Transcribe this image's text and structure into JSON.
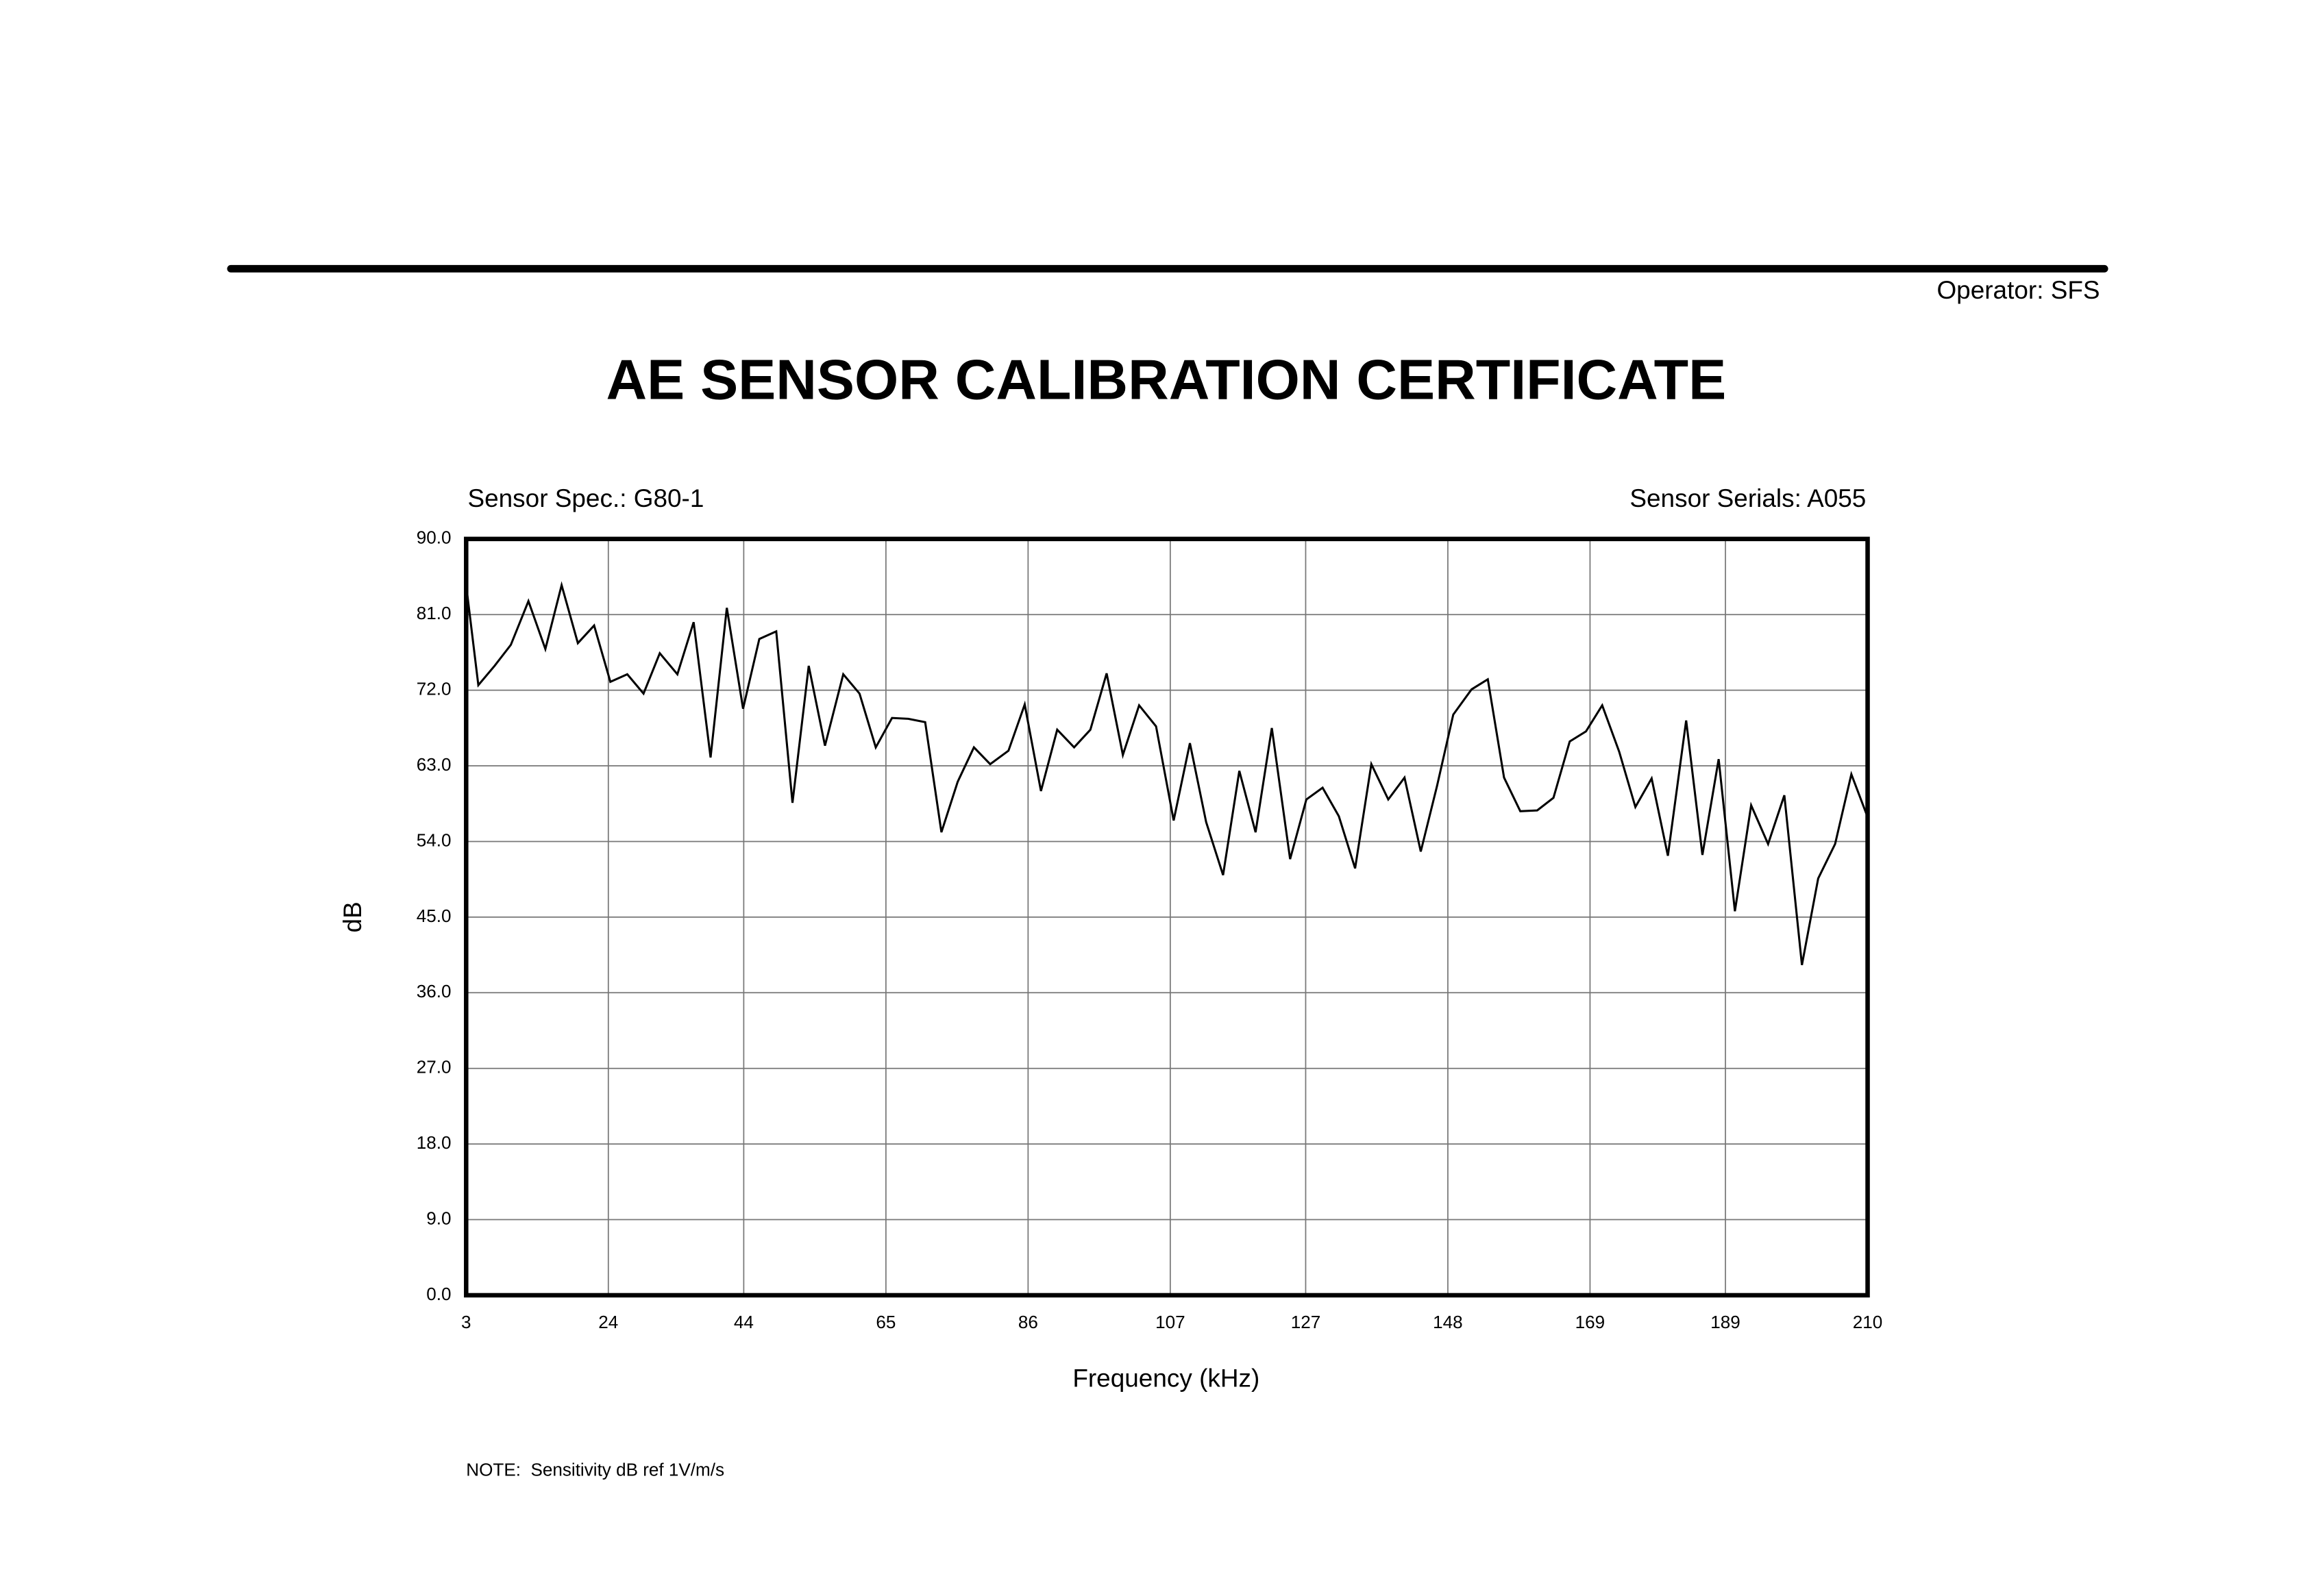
{
  "chart_data": {
    "type": "line",
    "title": "AE SENSOR CALIBRATION CERTIFICATE",
    "operator": "Operator: SFS",
    "sensor_spec": "Sensor Spec.: G80-1",
    "sensor_serials": "Sensor Serials: A055",
    "note": "NOTE:  Sensitivity dB ref 1V/m/s",
    "xlabel": "Frequency (kHz)",
    "ylabel": "dB",
    "xlim": [
      3,
      210
    ],
    "xticks": [
      3,
      24,
      44,
      65,
      86,
      107,
      127,
      148,
      169,
      189,
      210
    ],
    "ylim": [
      0,
      90
    ],
    "yticks": [
      {
        "value": 0,
        "label": "0.0"
      },
      {
        "value": 9,
        "label": "9.0"
      },
      {
        "value": 18,
        "label": "18.0"
      },
      {
        "value": 27,
        "label": "27.0"
      },
      {
        "value": 36,
        "label": "36.0"
      },
      {
        "value": 45,
        "label": "45.0"
      },
      {
        "value": 54,
        "label": "54.0"
      },
      {
        "value": 63,
        "label": "63.0"
      },
      {
        "value": 72,
        "label": "72.0"
      },
      {
        "value": 81,
        "label": "81.0"
      },
      {
        "value": 90,
        "label": "90.0"
      }
    ],
    "grid": true,
    "color": "#000000",
    "x": [
      3,
      4.8,
      7.2,
      9.6,
      12.2,
      14.7,
      17.1,
      19.5,
      21.9,
      24.3,
      26.8,
      29.2,
      31.6,
      34.2,
      36.6,
      39.1,
      41.5,
      43.9,
      46.3,
      48.8,
      51.2,
      53.6,
      56.0,
      58.7,
      61.1,
      63.5,
      65.9,
      68.3,
      70.8,
      73.2,
      75.6,
      78.0,
      80.4,
      83.1,
      85.5,
      87.9,
      90.3,
      92.8,
      95.2,
      97.6,
      100.0,
      102.4,
      104.9,
      107.5,
      109.9,
      112.3,
      114.8,
      117.2,
      119.6,
      122.0,
      124.7,
      127.1,
      129.5,
      131.9,
      134.3,
      136.7,
      139.2,
      141.6,
      144.0,
      146.4,
      148.8,
      151.5,
      153.9,
      156.3,
      158.7,
      161.2,
      163.6,
      166.0,
      168.4,
      170.8,
      173.3,
      175.7,
      178.1,
      180.5,
      183.2,
      185.6,
      188.0,
      190.4,
      192.8,
      195.3,
      197.7,
      200.3,
      202.7,
      205.2,
      207.6,
      210.0
    ],
    "values": [
      84.5,
      72.6,
      74.9,
      77.4,
      82.6,
      76.9,
      84.5,
      77.6,
      79.7,
      73.0,
      73.9,
      71.6,
      76.4,
      73.9,
      80.1,
      64.0,
      81.8,
      69.8,
      78.1,
      79.0,
      58.6,
      74.9,
      65.4,
      73.9,
      71.6,
      65.2,
      68.7,
      68.6,
      68.2,
      55.1,
      61.1,
      65.2,
      63.2,
      64.8,
      70.3,
      60.0,
      67.3,
      65.2,
      67.3,
      74.0,
      64.3,
      70.2,
      67.7,
      56.5,
      65.7,
      56.3,
      50.0,
      62.4,
      55.1,
      67.5,
      51.9,
      59.0,
      60.4,
      57.0,
      50.8,
      63.2,
      59.0,
      61.6,
      52.8,
      60.6,
      69.1,
      72.1,
      73.3,
      61.6,
      57.6,
      57.7,
      59.2,
      65.9,
      67.1,
      70.2,
      64.7,
      58.1,
      61.5,
      52.3,
      68.4,
      52.4,
      63.8,
      45.7,
      58.3,
      53.7,
      59.5,
      39.3,
      49.6,
      53.7,
      62.0,
      56.9
    ]
  }
}
